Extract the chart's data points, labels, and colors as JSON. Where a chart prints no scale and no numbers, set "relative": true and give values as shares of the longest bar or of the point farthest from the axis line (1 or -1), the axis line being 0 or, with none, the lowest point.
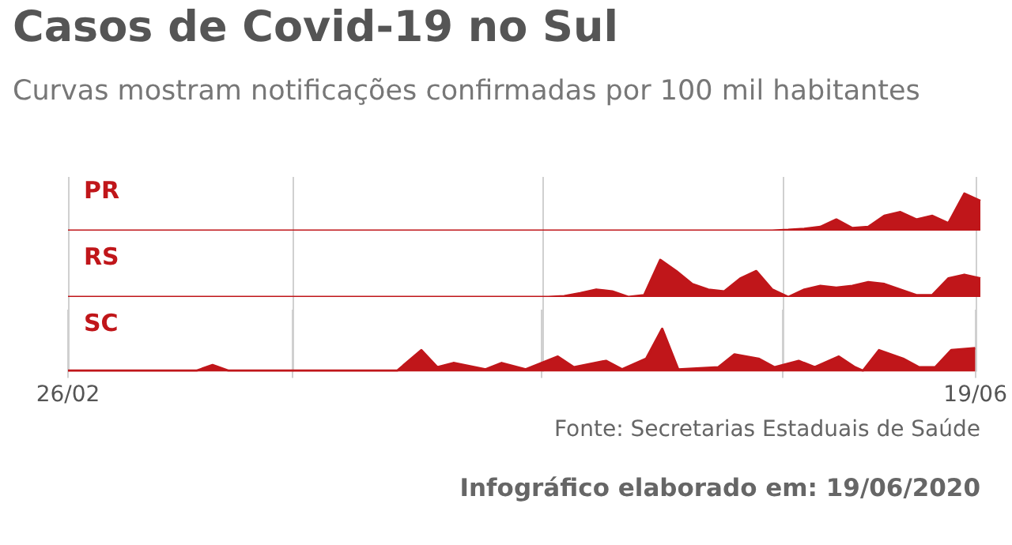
{
  "chart_data": [
    {
      "type": "area",
      "title": "Casos de Covid-19 no Sul",
      "subtitle": "Curvas mostram notificações confirmadas por 100 mil habitantes",
      "relative": true,
      "legend": false,
      "categories": [
        null,
        null,
        null,
        null,
        null,
        null,
        null,
        null,
        null,
        null,
        null,
        null,
        null,
        null,
        null,
        null,
        null,
        null,
        null,
        null,
        null,
        null,
        null,
        null,
        null,
        null,
        null,
        null,
        null,
        null,
        null,
        null,
        null,
        null,
        null,
        null,
        null,
        null,
        null,
        null,
        null,
        null,
        null,
        null,
        null,
        null,
        null,
        null,
        null,
        null,
        null,
        null,
        null,
        null,
        null,
        null,
        null,
        null
      ],
      "series": [
        {
          "name": "PR",
          "color": "#c0161a",
          "values": [
            0,
            0,
            0,
            0,
            0,
            0,
            0,
            0,
            0,
            0,
            0,
            0,
            0,
            0,
            0,
            0,
            0,
            0,
            0,
            0,
            0,
            0,
            0,
            0,
            0,
            0,
            0,
            0,
            0,
            0,
            0,
            0,
            0,
            0,
            0,
            0,
            0,
            0,
            0,
            0,
            0,
            0,
            0,
            0,
            0,
            0.02,
            0.05,
            0.1,
            0.3,
            0.07,
            0.1,
            0.4,
            0.5,
            0.3,
            0.4,
            0.2,
            1,
            0.8
          ]
        }
      ]
    },
    {
      "type": "area",
      "relative": true,
      "legend": false,
      "categories": [
        null,
        null,
        null,
        null,
        null,
        null,
        null,
        null,
        null,
        null,
        null,
        null,
        null,
        null,
        null,
        null,
        null,
        null,
        null,
        null,
        null,
        null,
        null,
        null,
        null,
        null,
        null,
        null,
        null,
        null,
        null,
        null,
        null,
        null,
        null,
        null,
        null,
        null,
        null,
        null,
        null,
        null,
        null,
        null,
        null,
        null,
        null,
        null,
        null,
        null,
        null,
        null,
        null,
        null,
        null,
        null,
        null,
        null
      ],
      "series": [
        {
          "name": "RS",
          "color": "#c0161a",
          "values": [
            0,
            0,
            0,
            0,
            0,
            0,
            0,
            0,
            0,
            0,
            0,
            0,
            0,
            0,
            0,
            0,
            0,
            0,
            0,
            0,
            0,
            0,
            0,
            0,
            0,
            0,
            0,
            0,
            0,
            0,
            0,
            0.02,
            0.1,
            0.2,
            0.15,
            0,
            0.05,
            1,
            0.7,
            0.35,
            0.2,
            0.15,
            0.5,
            0.7,
            0.2,
            0,
            0.2,
            0.3,
            0.25,
            0.3,
            0.4,
            0.35,
            0.2,
            0.05,
            0.05,
            0.5,
            0.6,
            0.5
          ]
        }
      ]
    },
    {
      "type": "area",
      "relative": true,
      "legend": false,
      "grid": "x",
      "tick_labels": "x",
      "xlim": [
        "--02-26",
        "--06-19"
      ],
      "xticks": [
        {
          "value": "--02-26",
          "label": "26/02"
        },
        {
          "value": "--03-26",
          "label": null
        },
        {
          "value": "--04-26",
          "label": null
        },
        {
          "value": "--05-26",
          "label": null
        },
        {
          "value": "--06-19",
          "label": "19/06"
        }
      ],
      "annotations": [
        "Fonte: Secretarias Estaduais de Saúde",
        "Infográfico elaborado em: 19/06/2020"
      ],
      "series": [
        {
          "name": "SC",
          "color": "#c0161a",
          "x": [
            "--02-26",
            "--03-14",
            "--03-16",
            "--03-18",
            "--04-08",
            "--04-11",
            "--04-13",
            "--04-15",
            "--04-19",
            "--04-21",
            "--04-24",
            "--04-28",
            "--04-30",
            "--05-04",
            "--05-06",
            "--05-09",
            "--05-11",
            "--05-13",
            "--05-18",
            "--05-20",
            "--05-23",
            "--05-25",
            "--05-28",
            "--05-30",
            "--06-02",
            "--06-04",
            "--06-05",
            "--06-07",
            "--06-10",
            "--06-12",
            "--06-14",
            "--06-16",
            "--06-19"
          ],
          "values": [
            0.02,
            0.02,
            0.15,
            0.02,
            0.02,
            0.5,
            0.1,
            0.2,
            0.05,
            0.2,
            0.05,
            0.35,
            0.1,
            0.25,
            0.05,
            0.3,
            1,
            0.05,
            0.1,
            0.4,
            0.3,
            0.1,
            0.25,
            0.1,
            0.35,
            0.1,
            0.02,
            0.5,
            0.3,
            0.1,
            0.1,
            0.5,
            0.55
          ]
        }
      ]
    }
  ]
}
